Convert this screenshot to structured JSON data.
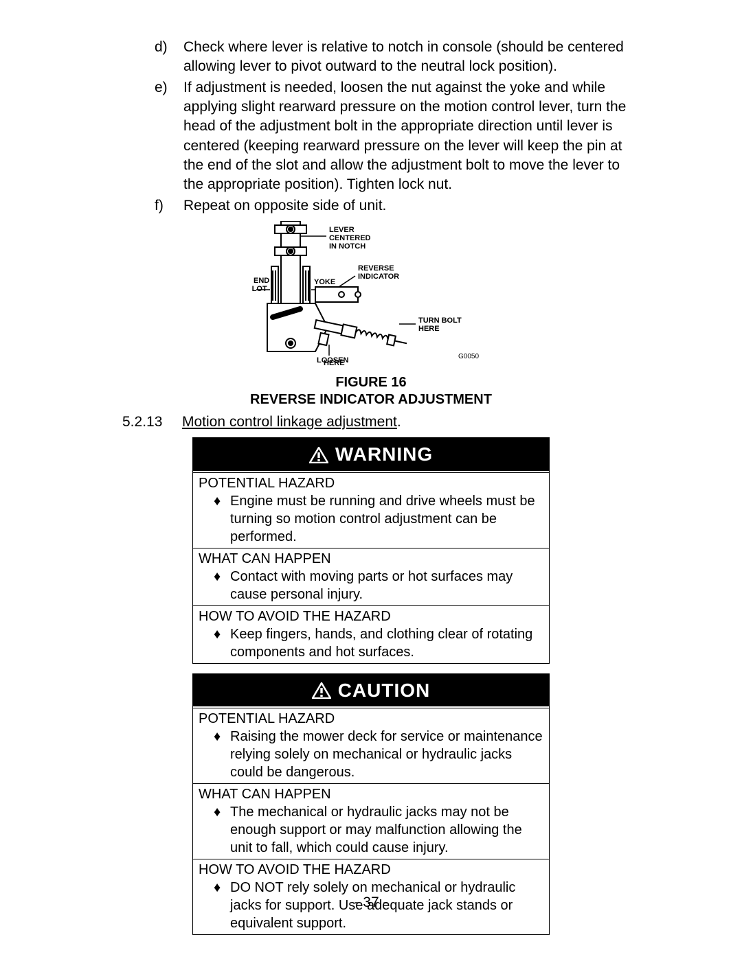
{
  "intro_list": [
    {
      "letter": "d)",
      "text": "Check where lever is relative to notch in console (should be centered allowing lever to pivot outward to the neutral lock position)."
    },
    {
      "letter": "e)",
      "text": "If adjustment is needed, loosen the nut against the yoke and while applying slight rearward pressure on the motion control lever, turn the head of the adjustment bolt in the appropriate direction until lever is centered (keeping rearward pressure on the lever will keep the pin at the end of the slot and allow the adjustment bolt to move the lever to the appropriate position).  Tighten lock nut."
    },
    {
      "letter": "f)",
      "text": "Repeat on opposite side of unit."
    }
  ],
  "figure": {
    "labels": {
      "lever_centered": "LEVER CENTERED IN NOTCH",
      "reverse_indicator": "REVERSE INDICATOR",
      "end_of_slot": "END OF SLOT",
      "yoke": "YOKE",
      "turn_bolt": "TURN BOLT HERE",
      "loosen_here": "LOOSEN HERE",
      "code": "G0050"
    },
    "caption_line1": "FIGURE 16",
    "caption_line2": "REVERSE INDICATOR ADJUSTMENT"
  },
  "section": {
    "number": "5.2.13",
    "title": "Motion control linkage adjustment",
    "trailing": "."
  },
  "warning": {
    "header": "WARNING",
    "potential_label": "POTENTIAL HAZARD",
    "potential_bullets": [
      "Engine must be running and drive wheels must be turning so motion control adjustment can be performed."
    ],
    "what_label": "WHAT CAN HAPPEN",
    "what_bullets": [
      "Contact with moving parts or hot surfaces may cause personal injury."
    ],
    "avoid_label": "HOW TO AVOID THE HAZARD",
    "avoid_bullets": [
      "Keep fingers, hands, and clothing clear of rotating components and hot surfaces."
    ]
  },
  "caution": {
    "header": "CAUTION",
    "potential_label": "POTENTIAL HAZARD",
    "potential_bullets": [
      "Raising the mower deck for service or maintenance relying solely on mechanical or hydraulic jacks could be dangerous."
    ],
    "what_label": "WHAT CAN HAPPEN",
    "what_bullets": [
      "The mechanical or hydraulic jacks may not be enough support or may malfunction allowing the unit to fall, which could cause injury."
    ],
    "avoid_label": "HOW TO AVOID THE HAZARD",
    "avoid_bullets": [
      "DO NOT rely solely on mechanical or hydraulic jacks for support.  Use adequate jack stands or equivalent support."
    ]
  },
  "page_number": "- 37 -"
}
